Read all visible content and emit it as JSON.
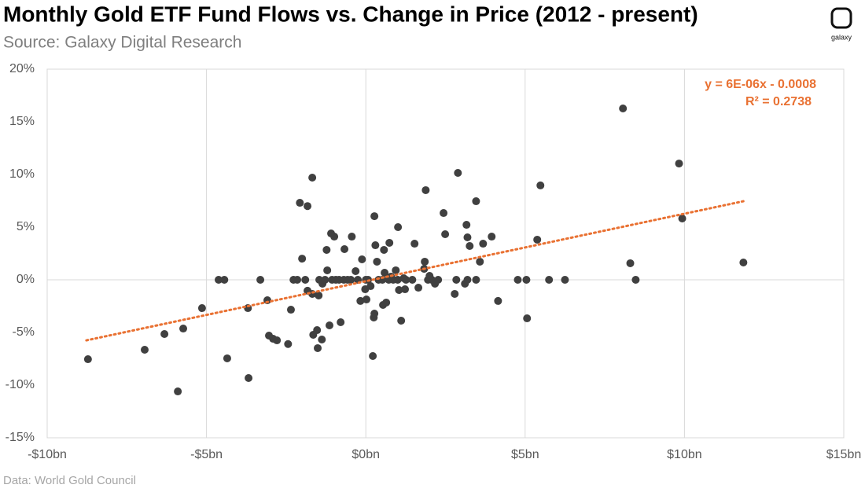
{
  "chart_data": {
    "type": "scatter",
    "title": "Monthly Gold ETF Fund Flows vs. Change in Price (2012 - present)",
    "subtitle": "Source: Galaxy Digital Research",
    "footnote": "Data: World Gold Council",
    "color": "#404040",
    "grid": "x",
    "xlim": [
      -10,
      15
    ],
    "ylim": [
      -15,
      20
    ],
    "xticks": [
      {
        "value": -10,
        "label": "-$10bn"
      },
      {
        "value": -5,
        "label": "-$5bn"
      },
      {
        "value": 0,
        "label": "$0bn"
      },
      {
        "value": 5,
        "label": "$5bn"
      },
      {
        "value": 10,
        "label": "$10bn"
      },
      {
        "value": 15,
        "label": "$15bn"
      }
    ],
    "yticks": [
      {
        "value": -15,
        "label": "-15%"
      },
      {
        "value": -10,
        "label": "-10%"
      },
      {
        "value": -5,
        "label": "-5%"
      },
      {
        "value": 0,
        "label": "0%"
      },
      {
        "value": 5,
        "label": "5%"
      },
      {
        "value": 10,
        "label": "10%"
      },
      {
        "value": 15,
        "label": "15%"
      },
      {
        "value": 20,
        "label": "20%"
      }
    ],
    "x": [
      -8.72,
      -6.94,
      -6.32,
      -5.9,
      -5.73,
      -5.14,
      -4.62,
      -4.44,
      -4.35,
      -3.68,
      -3.7,
      -3.31,
      -3.09,
      -3.04,
      -2.91,
      -2.79,
      -2.44,
      -2.35,
      -2.27,
      -2.15,
      -2.07,
      -2.0,
      -1.9,
      -1.83,
      -1.83,
      -1.68,
      -1.68,
      -1.65,
      -1.53,
      -1.51,
      -1.48,
      -1.46,
      -1.38,
      -1.36,
      -1.28,
      -1.23,
      -1.21,
      -1.14,
      -1.09,
      -1.06,
      -0.99,
      -0.94,
      -0.84,
      -0.79,
      -0.69,
      -0.67,
      -0.57,
      -0.47,
      -0.44,
      -0.32,
      -0.25,
      -0.17,
      -0.12,
      -0.02,
      0,
      0.02,
      0.07,
      0.15,
      0.22,
      0.25,
      0.27,
      0.27,
      0.3,
      0.35,
      0.4,
      0.52,
      0.54,
      0.57,
      0.59,
      0.64,
      0.72,
      0.74,
      0.79,
      0.86,
      0.94,
      1.0,
      1.01,
      1.04,
      1.11,
      1.19,
      1.23,
      1.26,
      1.46,
      1.53,
      1.65,
      1.83,
      1.85,
      1.88,
      1.95,
      2.0,
      2.07,
      2.17,
      2.27,
      2.44,
      2.49,
      2.79,
      2.84,
      2.89,
      3.11,
      3.16,
      3.19,
      3.19,
      3.26,
      3.46,
      3.46,
      3.58,
      3.68,
      3.95,
      4.15,
      4.77,
      5.04,
      5.06,
      5.38,
      5.48,
      5.75,
      6.25,
      8.07,
      8.3,
      8.47,
      9.83,
      9.93,
      11.85
    ],
    "values": [
      -7.54,
      -6.64,
      -5.15,
      -10.6,
      -4.63,
      -2.69,
      0,
      0,
      -7.46,
      -9.33,
      -2.69,
      0,
      -1.94,
      -5.3,
      -5.6,
      -5.75,
      -6.1,
      -2.84,
      0,
      0,
      7.31,
      2.01,
      0,
      7.0,
      -1.04,
      9.7,
      -1.34,
      -5.22,
      -4.78,
      -6.49,
      -1.49,
      0,
      -5.67,
      -0.37,
      0,
      2.84,
      0.9,
      -4.33,
      4.4,
      0,
      4.1,
      0,
      0,
      -4.03,
      0,
      2.91,
      0,
      0,
      4.1,
      0.82,
      0,
      -2.01,
      1.94,
      -0.9,
      0,
      -1.87,
      0,
      -0.6,
      -7.24,
      -3.58,
      -3.21,
      6.04,
      3.28,
      1.72,
      0,
      0,
      -2.39,
      2.84,
      0.67,
      -2.16,
      0,
      3.51,
      0.3,
      0,
      0.9,
      0,
      5.0,
      -0.97,
      -3.88,
      0.15,
      -0.9,
      0,
      0,
      3.43,
      -0.75,
      1.04,
      1.72,
      8.51,
      0,
      0.37,
      0,
      -0.37,
      0,
      6.34,
      4.33,
      -1.34,
      0,
      10.15,
      -0.37,
      5.22,
      4.03,
      0,
      3.21,
      0,
      7.46,
      1.72,
      3.43,
      4.1,
      -2.01,
      0,
      0,
      -3.66,
      3.81,
      8.96,
      0,
      0,
      16.27,
      1.57,
      0,
      11.04,
      5.82,
      1.64
    ],
    "trendline": {
      "x": [
        -8.77,
        11.85
      ],
      "values": [
        -5.75,
        7.46
      ],
      "color": "#e97132",
      "equation": "y = 6E-06x - 0.0008",
      "r_squared": "R² = 0.2738"
    }
  },
  "logo": "galaxy"
}
